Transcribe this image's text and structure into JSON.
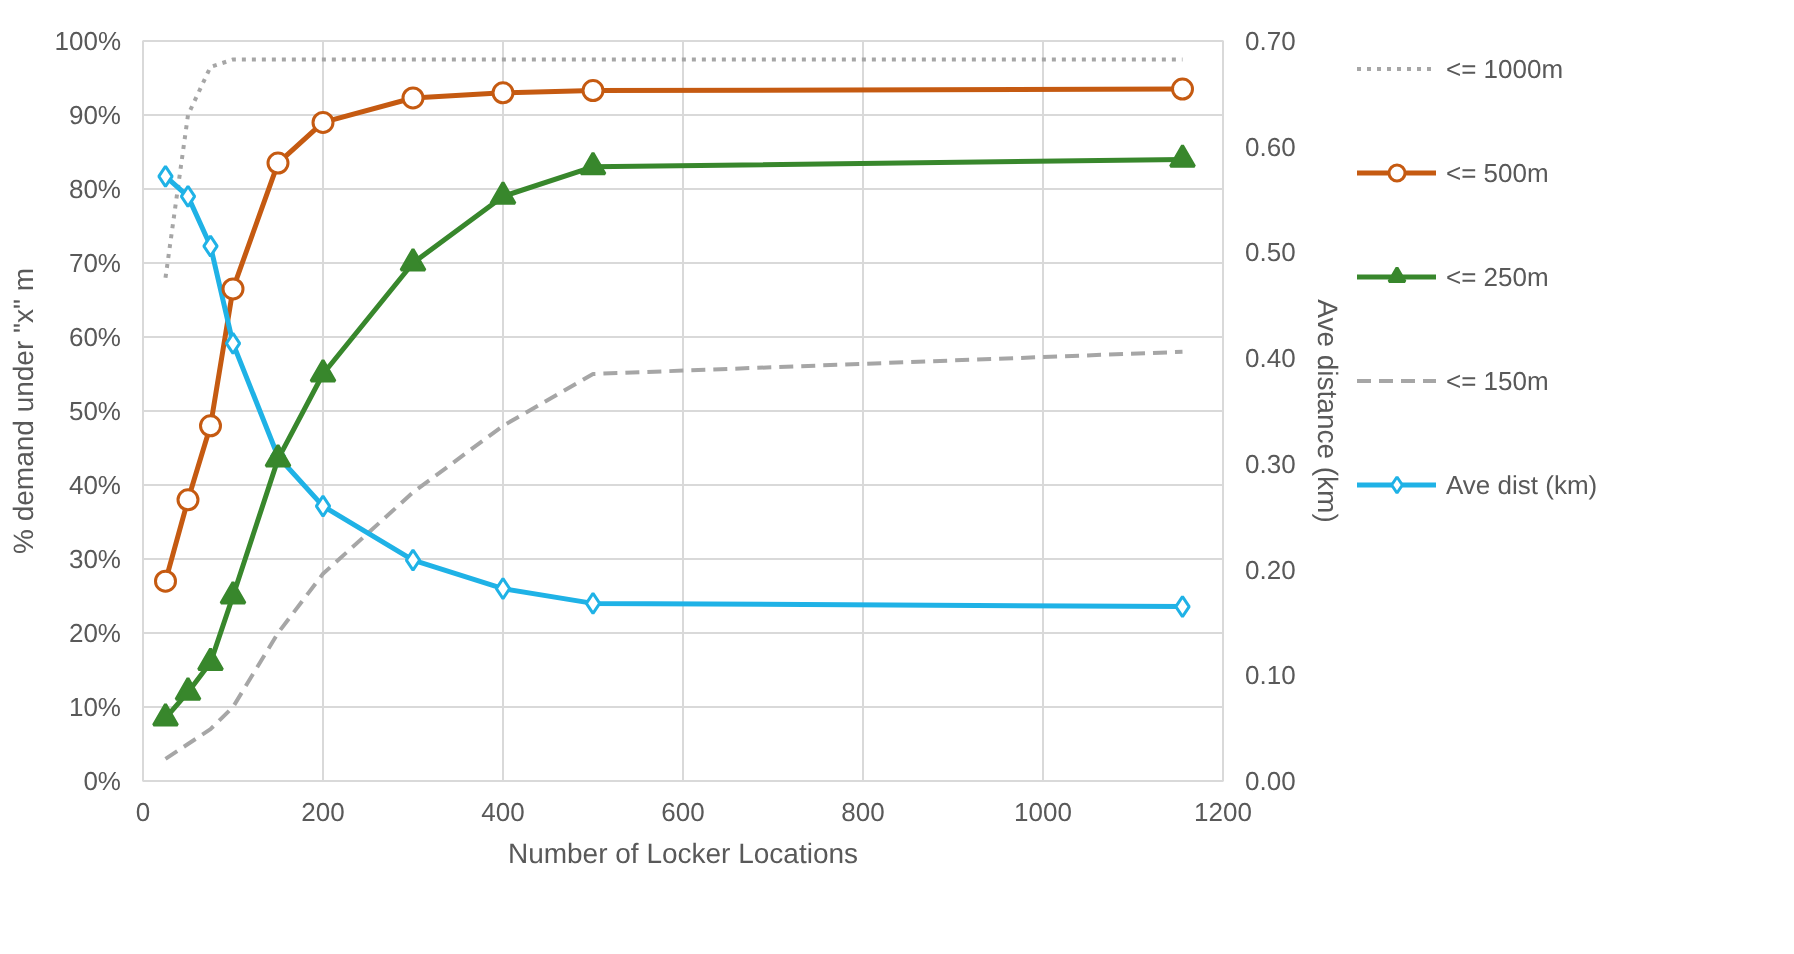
{
  "chart_data": {
    "type": "line",
    "xlabel": "Number of Locker Locations",
    "ylabel": "% demand under \"x\" m",
    "y2label": "Ave distance (km)",
    "x": [
      25,
      50,
      75,
      100,
      150,
      200,
      300,
      400,
      500,
      1155
    ],
    "xlim": [
      0,
      1200
    ],
    "xticks": [
      0,
      200,
      400,
      600,
      800,
      1000,
      1200
    ],
    "ylim": [
      0,
      100
    ],
    "yticks": [
      {
        "value": 0,
        "label": "0%"
      },
      {
        "value": 10,
        "label": "10%"
      },
      {
        "value": 20,
        "label": "20%"
      },
      {
        "value": 30,
        "label": "30%"
      },
      {
        "value": 40,
        "label": "40%"
      },
      {
        "value": 50,
        "label": "50%"
      },
      {
        "value": 60,
        "label": "60%"
      },
      {
        "value": 70,
        "label": "70%"
      },
      {
        "value": 80,
        "label": "80%"
      },
      {
        "value": 90,
        "label": "90%"
      },
      {
        "value": 100,
        "label": "100%"
      }
    ],
    "y2lim": [
      0,
      0.7
    ],
    "y2ticks": [
      {
        "value": 0,
        "label": "0.00"
      },
      {
        "value": 0.1,
        "label": "0.10"
      },
      {
        "value": 0.2,
        "label": "0.20"
      },
      {
        "value": 0.3,
        "label": "0.30"
      },
      {
        "value": 0.4,
        "label": "0.40"
      },
      {
        "value": 0.5,
        "label": "0.50"
      },
      {
        "value": 0.6,
        "label": "0.60"
      },
      {
        "value": 0.7,
        "label": "0.70"
      }
    ],
    "grid": true,
    "legend": "right",
    "series": [
      {
        "name": "<= 1000m",
        "color": "#a6a6a6",
        "marker": "none",
        "line_style": "dotted",
        "values": [
          68,
          90,
          96.5,
          97.5,
          97.5,
          97.5,
          97.5,
          97.5,
          97.5,
          97.5
        ]
      },
      {
        "name": "<= 500m",
        "color": "#c55a11",
        "marker": "circle",
        "line_style": "solid",
        "values": [
          27,
          38,
          48,
          66.5,
          83.5,
          89,
          92.3,
          93,
          93.3,
          93.5
        ]
      },
      {
        "name": "<= 250m",
        "color": "#38872c",
        "marker": "triangle",
        "line_style": "solid",
        "values": [
          8.5,
          12,
          16,
          25,
          43.5,
          55,
          70,
          79,
          83,
          84
        ]
      },
      {
        "name": "<= 150m",
        "color": "#a6a6a6",
        "marker": "none",
        "line_style": "dashed",
        "values": [
          3,
          5,
          7,
          10,
          20,
          28,
          39,
          48,
          55,
          58
        ]
      },
      {
        "name": "Ave dist (km)",
        "color": "#1fb2e6",
        "marker": "diamond",
        "line_style": "solid",
        "axis": "y2",
        "values": [
          0.572,
          0.553,
          0.506,
          0.414,
          0.307,
          0.26,
          0.209,
          0.182,
          0.168,
          0.165
        ]
      }
    ]
  }
}
